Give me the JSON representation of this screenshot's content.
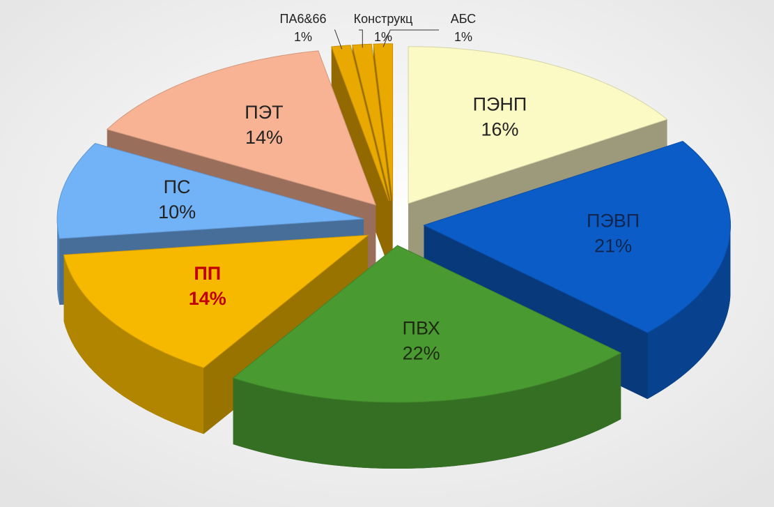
{
  "chart_data": {
    "type": "pie",
    "categories": [
      "ПЭНП",
      "ПЭВП",
      "ПВХ",
      "ПП",
      "ПС",
      "ПЭТ",
      "ПА6&66",
      "Конструкц",
      "АБС"
    ],
    "values": [
      16,
      21,
      22,
      14,
      10,
      14,
      1,
      1,
      1
    ],
    "value_labels": [
      "16%",
      "21%",
      "22%",
      "14%",
      "10%",
      "14%",
      "1%",
      "1%",
      "1%"
    ],
    "colors": [
      "#fbf9c4",
      "#0b5cc6",
      "#4a9a32",
      "#f7b900",
      "#72b2f7",
      "#f7b394",
      "#eaa900",
      "#eaa900",
      "#eaa900"
    ],
    "label_colors": [
      "#222222",
      "#10264e",
      "#1d2a10",
      "#c00000",
      "#222222",
      "#222222",
      "#222222",
      "#222222",
      "#222222"
    ]
  }
}
